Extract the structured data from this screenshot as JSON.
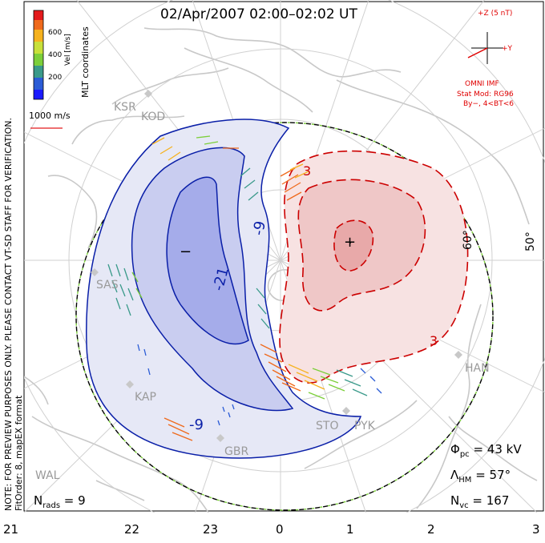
{
  "title": "02/Apr/2007 02:00–02:02 UT",
  "coordinates_label": "MLT coordinates",
  "side_note_1": "NOTE: FOR PREVIEW PURPOSES ONLY. PLEASE CONTACT VT-SD STAFF FOR VERIFICATION.",
  "side_note_2": "FitOrder: 8, mapEX format",
  "colorbar": {
    "title": "Vel [m/s]",
    "ticks": [
      "600",
      "400",
      "200"
    ],
    "colors": [
      "#1a1aff",
      "#2b5cd6",
      "#3a9a8a",
      "#7ccf3a",
      "#c8e03a",
      "#f6b21e",
      "#ef6a1c",
      "#e41a1c"
    ]
  },
  "scale": {
    "label": "1000 m/s"
  },
  "imf": {
    "z_label": "+Z (5 nT)",
    "y_label": "+Y",
    "omni": "OMNI IMF",
    "stat_mod": "Stat Mod: RG96",
    "condition": "By−, 4<BT<6"
  },
  "stats": {
    "phi_pc": "43 kV",
    "lambda_hm": "57°",
    "n_vc": "167",
    "n_rads": "9"
  },
  "stations": [
    "KSR",
    "KOD",
    "SAS",
    "KAP",
    "GBR",
    "WAL",
    "HAN",
    "STO",
    "PYK"
  ],
  "contours": {
    "negative": [
      "-21",
      "-9",
      "-9"
    ],
    "positive": [
      "3",
      "3"
    ],
    "minus_sign": "−",
    "plus_sign": "+"
  },
  "lat_labels": [
    "60°",
    "50°"
  ],
  "mlt_labels": [
    "21",
    "22",
    "23",
    "0",
    "1",
    "2",
    "3"
  ]
}
